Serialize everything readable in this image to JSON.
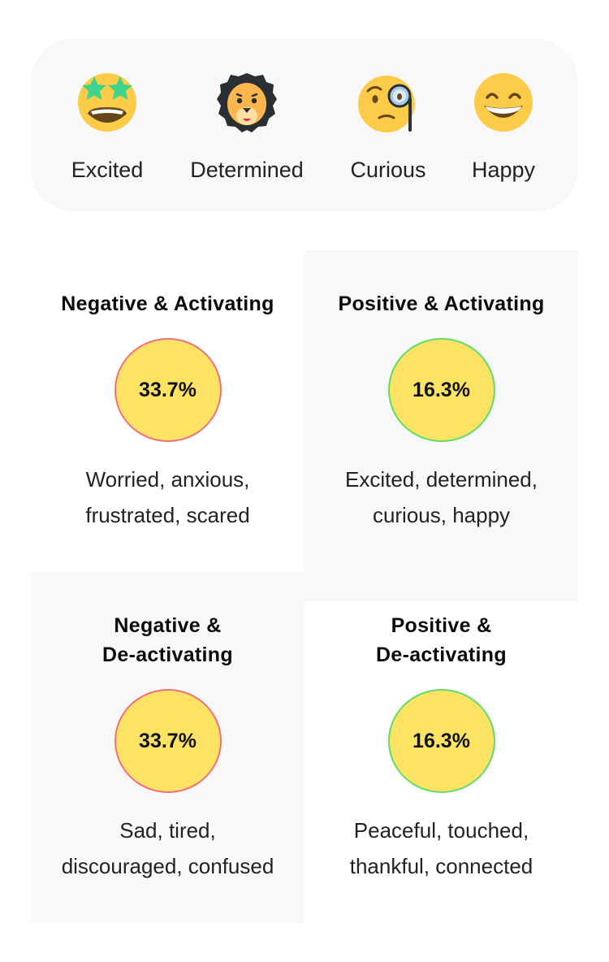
{
  "emotions": [
    {
      "label": "Excited",
      "icon": "star-struck-icon"
    },
    {
      "label": "Determined",
      "icon": "lion-icon"
    },
    {
      "label": "Curious",
      "icon": "face-with-monocle-icon"
    },
    {
      "label": "Happy",
      "icon": "grinning-face-icon"
    }
  ],
  "quadrants": [
    {
      "title_lines": [
        "Negative & Activating"
      ],
      "percent": "33.7%",
      "tone": "negative",
      "desc_lines": [
        "Worried, anxious,",
        "frustrated, scared"
      ]
    },
    {
      "title_lines": [
        "Positive & Activating"
      ],
      "percent": "16.3%",
      "tone": "positive",
      "desc_lines": [
        "Excited, determined,",
        "curious, happy"
      ]
    },
    {
      "title_lines": [
        "Negative &",
        "De-activating"
      ],
      "percent": "33.7%",
      "tone": "negative",
      "desc_lines": [
        "Sad, tired,",
        "discouraged, confused"
      ]
    },
    {
      "title_lines": [
        "Positive &",
        "De-activating"
      ],
      "percent": "16.3%",
      "tone": "positive",
      "desc_lines": [
        "Peaceful, touched,",
        "thankful, connected"
      ]
    }
  ],
  "colors": {
    "circle_fill": "#fde364",
    "negative_border": "#f26f7b",
    "positive_border": "#5fdc6a",
    "panel_bg": "#f8f8f8"
  }
}
